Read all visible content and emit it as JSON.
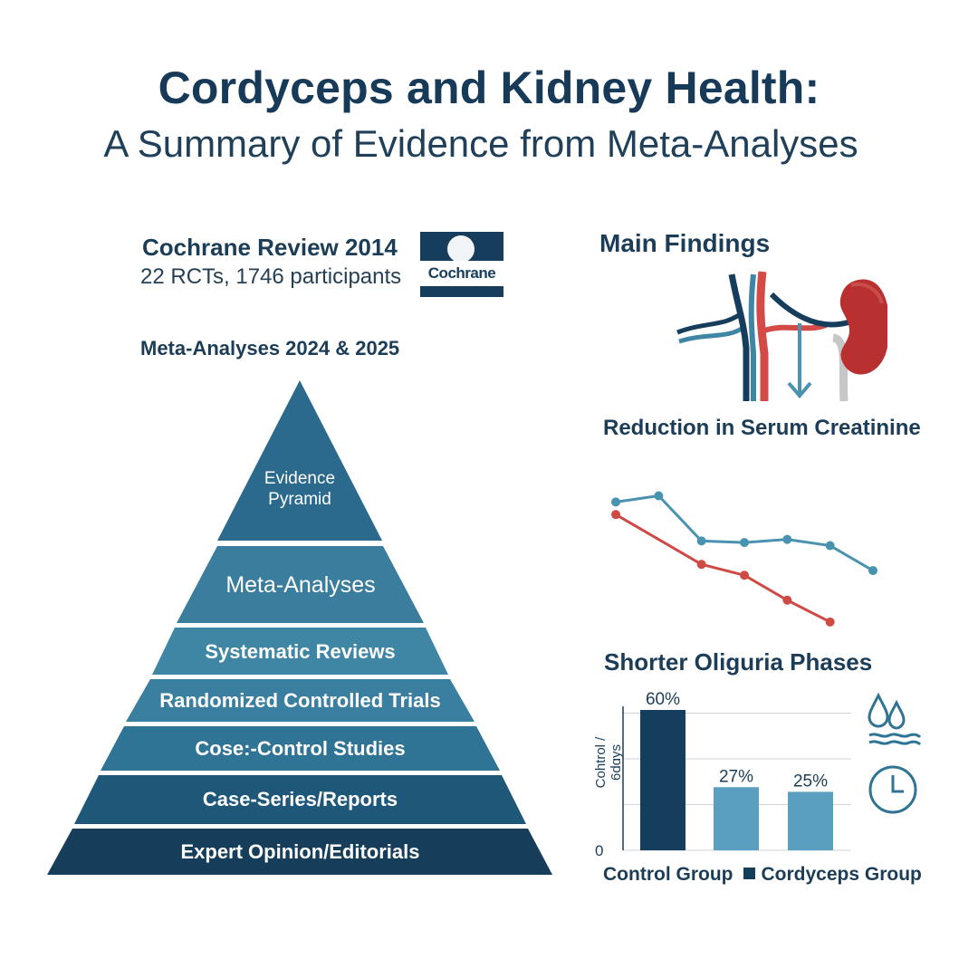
{
  "header": {
    "title": "Cordyceps and Kidney Health:",
    "subtitle": "A Summary of Evidence from Meta-Analyses"
  },
  "cochrane": {
    "title": "Cochrane Review 2014",
    "detail": "22 RCTs, 1746 participants",
    "logo_text": "Cochrane"
  },
  "meta_label": "Meta-Analyses 2024 & 2025",
  "pyramid": {
    "levels": [
      {
        "label": "Evidence Pyramid",
        "color": "#2b6a8c"
      },
      {
        "label": "Meta-Analyses",
        "color": "#3a7d9c"
      },
      {
        "label": "Systematic Reviews",
        "color": "#3f86a5"
      },
      {
        "label": "Randomized Controlled Trials",
        "color": "#3b7fa0"
      },
      {
        "label": "Cose:-Control Studies",
        "color": "#2f7395"
      },
      {
        "label": "Case-Series/Reports",
        "color": "#1f5778"
      },
      {
        "label": "Expert Opinion/Editorials",
        "color": "#163e5a"
      }
    ]
  },
  "findings": {
    "title": "Main Findings",
    "icon": "kidney-vessels-icon"
  },
  "creatinine": {
    "title": "Reduction in Serum Creatinine"
  },
  "chart_data": {
    "type": "line",
    "title": "Reduction in Serum Creatinine",
    "x": [
      1,
      2,
      3,
      4,
      5,
      6,
      7
    ],
    "series": [
      {
        "values": [
          8.0,
          8.4,
          5.5,
          5.4,
          5.6,
          5.2,
          3.6
        ],
        "color": "#4a93b0"
      },
      {
        "values": [
          7.2,
          null,
          4.0,
          3.3,
          1.7,
          0.3,
          null
        ],
        "color": "#cf4a45"
      }
    ],
    "ylim": [
      0,
      10
    ],
    "xlabel": "",
    "ylabel": "",
    "grid": false
  },
  "oliguria": {
    "title": "Shorter Oliguria Phases",
    "ylabel": "Cohtrol / 6dɑys",
    "y0": "0",
    "legend": {
      "control": "Control Group",
      "cordyceps": "Cordyceps Group"
    },
    "icons": [
      "water-drops-icon",
      "clock-icon"
    ]
  },
  "bar_chart": {
    "type": "bar",
    "values": [
      60,
      27,
      25
    ],
    "labels": [
      "60%",
      "27%",
      "25%"
    ],
    "colors": [
      "#153e5c",
      "#5a9fc0",
      "#5a9fc0"
    ],
    "ylim": [
      0,
      70
    ],
    "grid": true
  }
}
